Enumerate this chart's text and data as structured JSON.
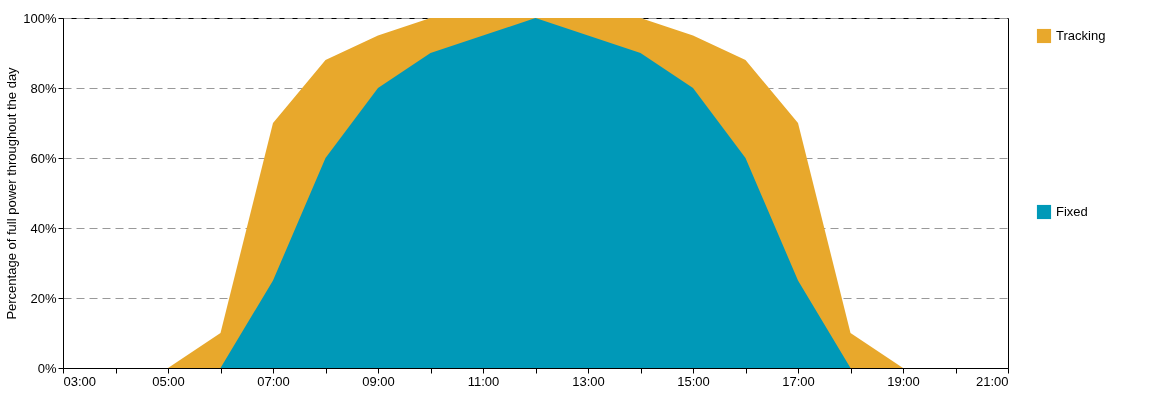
{
  "chart_data": {
    "type": "area",
    "ylabel": "Percentage of full power throughout the day",
    "xlim": [
      3,
      21
    ],
    "xticks": [
      {
        "value": 3,
        "label": "03:00"
      },
      {
        "value": 4,
        "label": null
      },
      {
        "value": 5,
        "label": "05:00"
      },
      {
        "value": 6,
        "label": null
      },
      {
        "value": 7,
        "label": "07:00"
      },
      {
        "value": 8,
        "label": null
      },
      {
        "value": 9,
        "label": "09:00"
      },
      {
        "value": 10,
        "label": null
      },
      {
        "value": 11,
        "label": "11:00"
      },
      {
        "value": 12,
        "label": null
      },
      {
        "value": 13,
        "label": "13:00"
      },
      {
        "value": 14,
        "label": null
      },
      {
        "value": 15,
        "label": "15:00"
      },
      {
        "value": 16,
        "label": null
      },
      {
        "value": 17,
        "label": "17:00"
      },
      {
        "value": 18,
        "label": null
      },
      {
        "value": 19,
        "label": "19:00"
      },
      {
        "value": 20,
        "label": null
      },
      {
        "value": 21,
        "label": "21:00"
      }
    ],
    "ylim": [
      0,
      100
    ],
    "yticks": [
      {
        "value": 0,
        "label": "0%"
      },
      {
        "value": 20,
        "label": "20%"
      },
      {
        "value": 40,
        "label": "40%"
      },
      {
        "value": 60,
        "label": "60%"
      },
      {
        "value": 80,
        "label": "80%"
      },
      {
        "value": 100,
        "label": "100%"
      }
    ],
    "grid": "y",
    "legend": "right",
    "series": [
      {
        "name": "Tracking",
        "color": "#e8a82c",
        "x": [
          5,
          6,
          7,
          8,
          9,
          10,
          11,
          12,
          13,
          14,
          15,
          16,
          17,
          18,
          19
        ],
        "values": [
          0,
          10,
          70,
          88,
          95,
          100,
          100,
          100,
          100,
          100,
          95,
          88,
          70,
          10,
          0
        ]
      },
      {
        "name": "Fixed",
        "color": "#0099b8",
        "x": [
          6,
          7,
          8,
          9,
          10,
          11,
          12,
          13,
          14,
          15,
          16,
          17,
          18
        ],
        "values": [
          0,
          25,
          60,
          80,
          90,
          95,
          100,
          95,
          90,
          80,
          60,
          25,
          0
        ]
      }
    ]
  }
}
